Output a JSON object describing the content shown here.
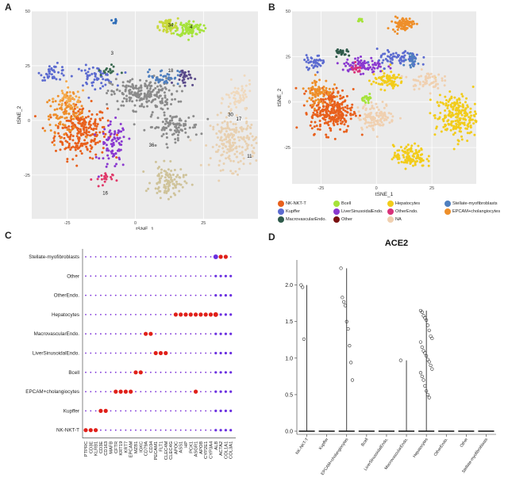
{
  "panels": {
    "a": {
      "letter": "A"
    },
    "b": {
      "letter": "B"
    },
    "c": {
      "letter": "C"
    },
    "d": {
      "letter": "D"
    }
  },
  "chart_data": [
    {
      "id": "A",
      "type": "scatter",
      "xlabel": "tSNE_1",
      "ylabel": "tSNE_2",
      "xlim": [
        -38,
        45
      ],
      "ylim": [
        -45,
        50
      ],
      "xticks": [
        "-25",
        "0",
        "25"
      ],
      "yticks": [
        "50",
        "25",
        "0",
        "-25"
      ],
      "cluster_labels": [
        {
          "label": "34",
          "x": 12,
          "y": 43
        },
        {
          "label": "4",
          "x": 20,
          "y": 42
        },
        {
          "label": "30",
          "x": 34,
          "y": 2
        },
        {
          "label": "17",
          "x": 37,
          "y": 0
        },
        {
          "label": "11",
          "x": 41,
          "y": -17
        },
        {
          "label": "3",
          "x": -9,
          "y": 30
        },
        {
          "label": "16",
          "x": -12,
          "y": -34
        },
        {
          "label": "36",
          "x": 5,
          "y": -12
        },
        {
          "label": "18",
          "x": 12,
          "y": 22
        }
      ],
      "clusters": [
        {
          "color": "#e8601c",
          "cx": -20,
          "cy": -5,
          "sx": 8,
          "sy": 10,
          "n": 260
        },
        {
          "color": "#ee8f2a",
          "cx": -26,
          "cy": 3,
          "sx": 6,
          "sy": 7,
          "n": 90
        },
        {
          "color": "#f5a94a",
          "cx": -24,
          "cy": 10,
          "sx": 5,
          "sy": 4,
          "n": 40
        },
        {
          "color": "#8a39d0",
          "cx": -8,
          "cy": -12,
          "sx": 4,
          "sy": 9,
          "n": 80
        },
        {
          "color": "#5c6bd0",
          "cx": -30,
          "cy": 22,
          "sx": 4,
          "sy": 3,
          "n": 40
        },
        {
          "color": "#5c6bd0",
          "cx": -15,
          "cy": 20,
          "sx": 6,
          "sy": 4,
          "n": 60
        },
        {
          "color": "#c8d83a",
          "cx": 12,
          "cy": 43,
          "sx": 3,
          "sy": 3,
          "n": 70
        },
        {
          "color": "#a5e33a",
          "cx": 20,
          "cy": 42,
          "sx": 4,
          "sy": 3,
          "n": 100
        },
        {
          "color": "#8b8b8b",
          "cx": 3,
          "cy": 12,
          "sx": 10,
          "sy": 6,
          "n": 220
        },
        {
          "color": "#8b8b8b",
          "cx": 14,
          "cy": -3,
          "sx": 8,
          "sy": 5,
          "n": 100
        },
        {
          "color": "#e8d0b0",
          "cx": 36,
          "cy": -10,
          "sx": 7,
          "sy": 10,
          "n": 200
        },
        {
          "color": "#f0d9bd",
          "cx": 38,
          "cy": 10,
          "sx": 4,
          "sy": 6,
          "n": 60
        },
        {
          "color": "#cfc39a",
          "cx": 12,
          "cy": -28,
          "sx": 5,
          "sy": 6,
          "n": 100
        },
        {
          "color": "#4f7fbf",
          "cx": 10,
          "cy": 20,
          "sx": 5,
          "sy": 3,
          "n": 40
        },
        {
          "color": "#5a4a8a",
          "cx": 18,
          "cy": 20,
          "sx": 3,
          "sy": 3,
          "n": 30
        },
        {
          "color": "#e03a6a",
          "cx": -12,
          "cy": -27,
          "sx": 3,
          "sy": 3,
          "n": 20
        },
        {
          "color": "#3a6a50",
          "cx": -10,
          "cy": 23,
          "sx": 3,
          "sy": 2,
          "n": 15
        },
        {
          "color": "#2e6db8",
          "cx": -8,
          "cy": 45,
          "sx": 1,
          "sy": 1,
          "n": 8
        }
      ]
    },
    {
      "id": "B",
      "type": "scatter",
      "xlabel": "tSNE_1",
      "ylabel": "tSNE_2",
      "xlim": [
        -38,
        45
      ],
      "ylim": [
        -45,
        50
      ],
      "xticks": [
        "-25",
        "0",
        "25"
      ],
      "yticks": [
        "50",
        "25",
        "0",
        "-25"
      ],
      "legend": [
        {
          "label": "NK-NKT-T",
          "color": "#e8601c"
        },
        {
          "label": "Bcell",
          "color": "#a5e33a"
        },
        {
          "label": "Hepatocytes",
          "color": "#f2cc1a"
        },
        {
          "label": "Stellate-myofibroblasts",
          "color": "#4f7fbf"
        },
        {
          "label": "Kupffer",
          "color": "#5c6bd0"
        },
        {
          "label": "LiverSinusoidalEndo.",
          "color": "#8a39d0"
        },
        {
          "label": "OtherEndo.",
          "color": "#d8317a"
        },
        {
          "label": "EPCAM+cholangiocytes",
          "color": "#ee8f2a"
        },
        {
          "label": "MacrovascularEndo.",
          "color": "#2f5a4a"
        },
        {
          "label": "Other",
          "color": "#7a1010"
        },
        {
          "label": "NA",
          "color": "#f0d0b0"
        }
      ],
      "clusters": [
        {
          "color": "#e8601c",
          "cx": -20,
          "cy": -5,
          "sx": 8,
          "sy": 10,
          "n": 280
        },
        {
          "color": "#ee8f2a",
          "cx": -26,
          "cy": 6,
          "sx": 5,
          "sy": 6,
          "n": 80
        },
        {
          "color": "#ee8f2a",
          "cx": 12,
          "cy": 43,
          "sx": 4,
          "sy": 3,
          "n": 90
        },
        {
          "color": "#f2cc1a",
          "cx": 36,
          "cy": -8,
          "sx": 8,
          "sy": 10,
          "n": 230
        },
        {
          "color": "#f2cc1a",
          "cx": 5,
          "cy": 12,
          "sx": 6,
          "sy": 4,
          "n": 80
        },
        {
          "color": "#f2cc1a",
          "cx": 15,
          "cy": -30,
          "sx": 6,
          "sy": 5,
          "n": 120
        },
        {
          "color": "#f0d0b0",
          "cx": 0,
          "cy": -8,
          "sx": 7,
          "sy": 6,
          "n": 120
        },
        {
          "color": "#f0d0b0",
          "cx": 22,
          "cy": 12,
          "sx": 6,
          "sy": 4,
          "n": 60
        },
        {
          "color": "#8a39d0",
          "cx": -6,
          "cy": 20,
          "sx": 8,
          "sy": 4,
          "n": 80
        },
        {
          "color": "#5c6bd0",
          "cx": -28,
          "cy": 22,
          "sx": 4,
          "sy": 3,
          "n": 40
        },
        {
          "color": "#5c6bd0",
          "cx": 10,
          "cy": 24,
          "sx": 8,
          "sy": 4,
          "n": 70
        },
        {
          "color": "#a5e33a",
          "cx": -4,
          "cy": 2,
          "sx": 2,
          "sy": 1.5,
          "n": 20
        },
        {
          "color": "#a5e33a",
          "cx": -7,
          "cy": 45,
          "sx": 1,
          "sy": 1,
          "n": 10
        },
        {
          "color": "#4f7fbf",
          "cx": 16,
          "cy": 22,
          "sx": 3,
          "sy": 3,
          "n": 25
        },
        {
          "color": "#2f5a4a",
          "cx": -15,
          "cy": 27,
          "sx": 3,
          "sy": 2,
          "n": 25
        },
        {
          "color": "#d8317a",
          "cx": -9,
          "cy": 18,
          "sx": 2,
          "sy": 2,
          "n": 15
        }
      ]
    },
    {
      "id": "C",
      "type": "dot",
      "rows": [
        "Stellate-myofibroblasts",
        "Other",
        "OtherEndo.",
        "Hepatocytes",
        "MacrovascularEndo.",
        "LiverSinusoidalEndo.",
        "Bcell",
        "EPCAM+cholangiocytes",
        "Kupffer",
        "NK-NKT-T"
      ],
      "genes": [
        "PTPRC",
        "CD3E",
        "KLRB1",
        "CD3E",
        "CD163",
        "MAFB",
        "CFTR",
        "KRT19",
        "KRT7",
        "EPCAM",
        "MZB1",
        "IGKC",
        "CD79A",
        "CD34",
        "PECAM1",
        "FLT1",
        "CLEC4M",
        "CLEC4G",
        "APOC",
        "ASS1",
        "HP",
        "PCK1",
        "ASGR1",
        "APOB",
        "CYP2E1",
        "CYP3A4",
        "ALB",
        "ACTA2",
        "COL1A1",
        "COL3A1"
      ],
      "highlights": [
        {
          "row": "NK-NKT-T",
          "genes": [
            0,
            1,
            2
          ]
        },
        {
          "row": "Kupffer",
          "genes": [
            3,
            4
          ]
        },
        {
          "row": "EPCAM+cholangiocytes",
          "genes": [
            6,
            7,
            8,
            9,
            22
          ]
        },
        {
          "row": "Bcell",
          "genes": [
            10,
            11
          ]
        },
        {
          "row": "LiverSinusoidalEndo.",
          "genes": [
            14,
            15,
            16
          ]
        },
        {
          "row": "MacrovascularEndo.",
          "genes": [
            12,
            13
          ]
        },
        {
          "row": "Hepatocytes",
          "genes": [
            18,
            19,
            20,
            21,
            22,
            23,
            24,
            25
          ]
        },
        {
          "row": "Stellate-myofibroblasts",
          "genes": [
            27,
            28
          ]
        }
      ]
    },
    {
      "id": "D",
      "type": "violin",
      "title": "ACE2",
      "ylim": [
        0,
        2.3
      ],
      "yticks": [
        "0.0",
        "0.5",
        "1.0",
        "1.5",
        "2.0"
      ],
      "categories": [
        "NK-NKT-T",
        "Kupffer",
        "EPCAM+cholangiocytes",
        "Bcell",
        "LiverSinusoidalEndo.",
        "MacrovascularEndo.",
        "Hepatocytes",
        "OtherEndo.",
        "Other",
        "Stellate-myofibroblasts"
      ],
      "max_values": [
        2.0,
        0,
        2.23,
        0,
        0,
        0.97,
        1.65,
        0,
        0,
        0
      ],
      "points": [
        {
          "cat": 0,
          "vals": [
            2.0,
            1.97,
            1.26
          ]
        },
        {
          "cat": 2,
          "vals": [
            2.23,
            1.83,
            1.77,
            1.72,
            1.5,
            1.4,
            1.17,
            0.94,
            0.7
          ]
        },
        {
          "cat": 5,
          "vals": [
            0.97
          ]
        },
        {
          "cat": 6,
          "vals": [
            1.65,
            1.63,
            1.58,
            1.55,
            1.52,
            1.45,
            1.38,
            1.3,
            1.27,
            1.22,
            1.15,
            1.1,
            1.07,
            1.03,
            0.98,
            0.95,
            0.9,
            0.85,
            0.8,
            0.75,
            0.7,
            0.62,
            0.55,
            0.5,
            0.46
          ]
        }
      ]
    }
  ]
}
